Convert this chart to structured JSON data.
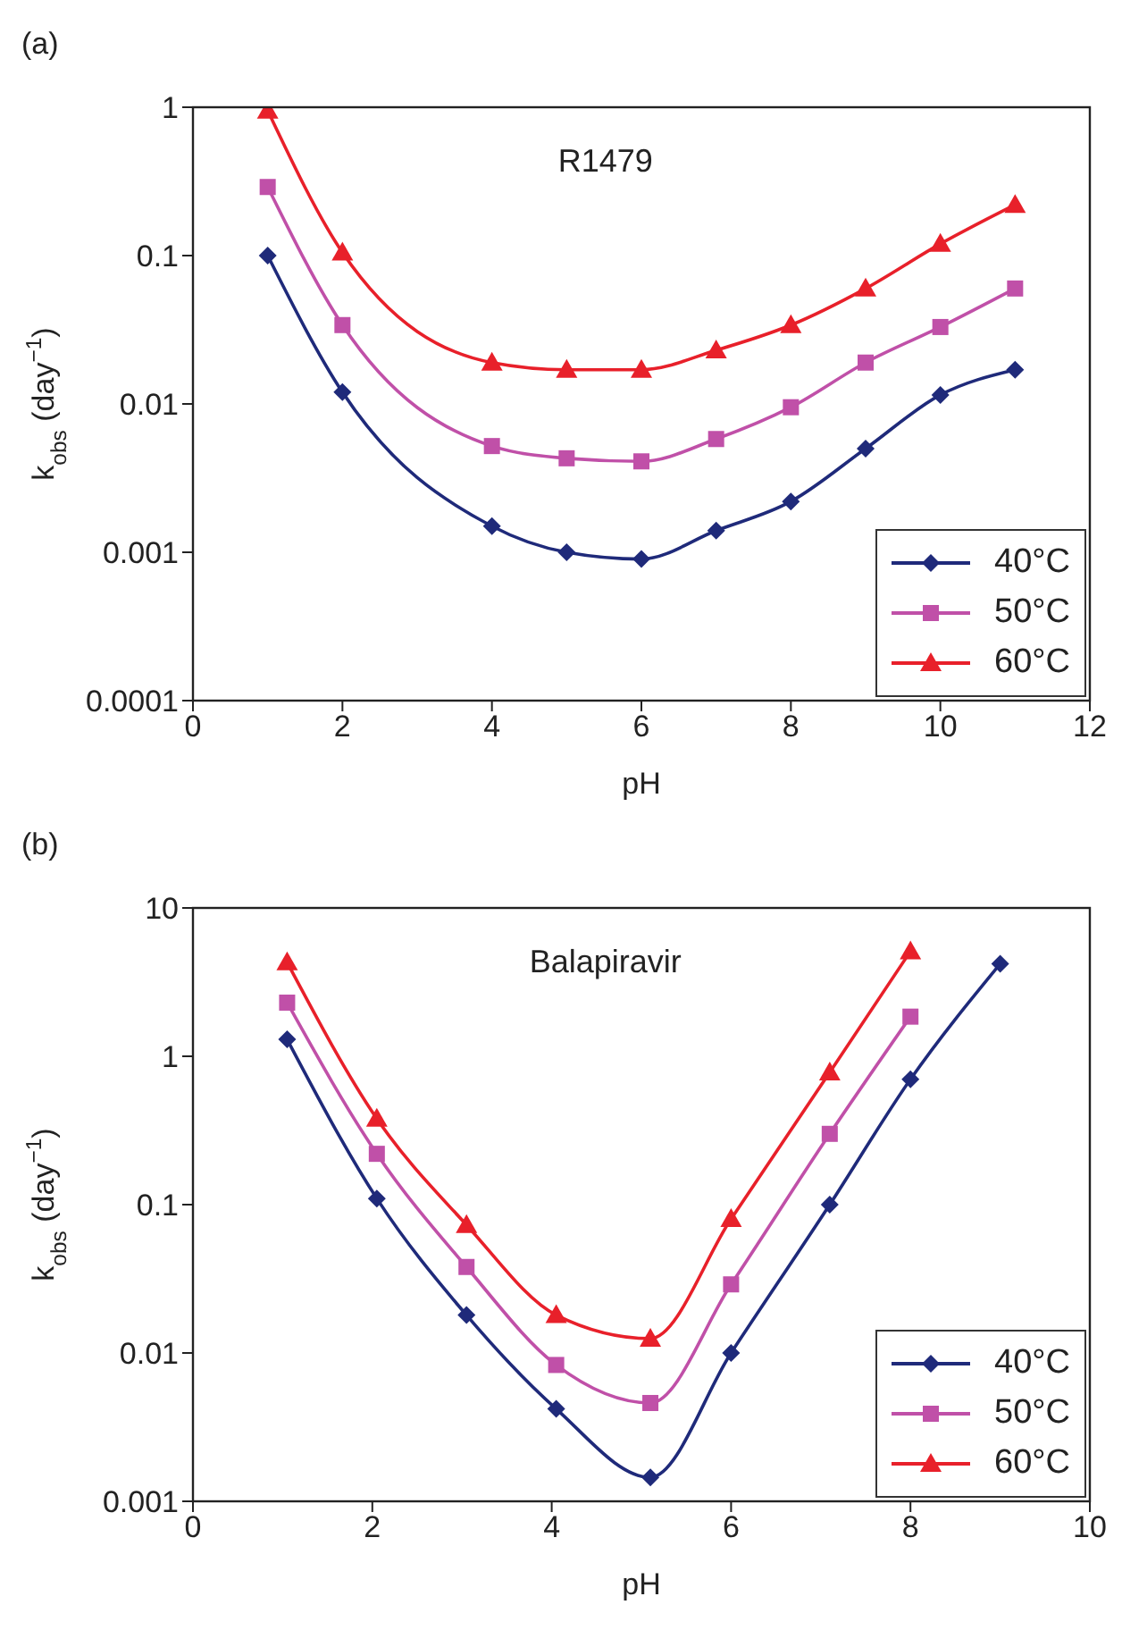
{
  "chart_data": [
    {
      "type": "line",
      "title": "R1479",
      "annotations": [
        "(a)"
      ],
      "xlabel": "pH",
      "ylabel": "k$_{obs}$ (day$^{−1}$)",
      "log": "y",
      "xlim": [
        0,
        12
      ],
      "xticks": [
        0,
        2,
        4,
        6,
        8,
        10,
        12
      ],
      "ylim": [
        0.0001,
        1
      ],
      "yticks": [
        0.0001,
        0.001,
        0.01,
        0.1,
        1
      ],
      "grid": false,
      "legend": "bottom right",
      "x": [
        1,
        2,
        4,
        5,
        6,
        7,
        8,
        9,
        10,
        11
      ],
      "series": [
        {
          "name": "40°C",
          "color": "#1f2a7a",
          "marker": "diamond",
          "values": [
            0.1,
            0.012,
            0.0015,
            0.001,
            0.0009,
            0.0014,
            0.0022,
            0.005,
            0.0115,
            0.017
          ]
        },
        {
          "name": "50°C",
          "color": "#c050a8",
          "marker": "square",
          "values": [
            0.29,
            0.034,
            0.0052,
            0.0043,
            0.0041,
            0.0058,
            0.0095,
            0.019,
            0.033,
            0.06
          ]
        },
        {
          "name": "60°C",
          "color": "#e8202a",
          "marker": "triangle",
          "values": [
            0.95,
            0.105,
            0.019,
            0.017,
            0.017,
            0.023,
            0.034,
            0.06,
            0.12,
            0.22
          ]
        }
      ]
    },
    {
      "type": "line",
      "title": "Balapiravir",
      "annotations": [
        "(b)"
      ],
      "xlabel": "pH",
      "ylabel": "k$_{obs}$ (day$^{−1}$)",
      "log": "y",
      "xlim": [
        0,
        10
      ],
      "xticks": [
        0,
        2,
        4,
        6,
        8,
        10
      ],
      "ylim": [
        0.001,
        10
      ],
      "yticks": [
        0.001,
        0.01,
        0.1,
        1,
        10
      ],
      "grid": false,
      "legend": "bottom right",
      "series": [
        {
          "name": "40°C",
          "color": "#1f2a7a",
          "marker": "diamond",
          "x": [
            1.05,
            2.05,
            3.05,
            4.05,
            5.1,
            6,
            7.1,
            8,
            9
          ],
          "values": [
            1.3,
            0.11,
            0.018,
            0.0042,
            0.00145,
            0.01,
            0.1,
            0.7,
            4.2
          ]
        },
        {
          "name": "50°C",
          "color": "#c050a8",
          "marker": "square",
          "x": [
            1.05,
            2.05,
            3.05,
            4.05,
            5.1,
            6,
            7.1,
            8
          ],
          "values": [
            2.3,
            0.22,
            0.038,
            0.0083,
            0.0046,
            0.029,
            0.3,
            1.85
          ]
        },
        {
          "name": "60°C",
          "color": "#e8202a",
          "marker": "triangle",
          "x": [
            1.05,
            2.05,
            3.05,
            4.05,
            5.1,
            6,
            7.1,
            8
          ],
          "values": [
            4.3,
            0.38,
            0.073,
            0.018,
            0.0125,
            0.08,
            0.78,
            5.1
          ]
        }
      ]
    }
  ]
}
